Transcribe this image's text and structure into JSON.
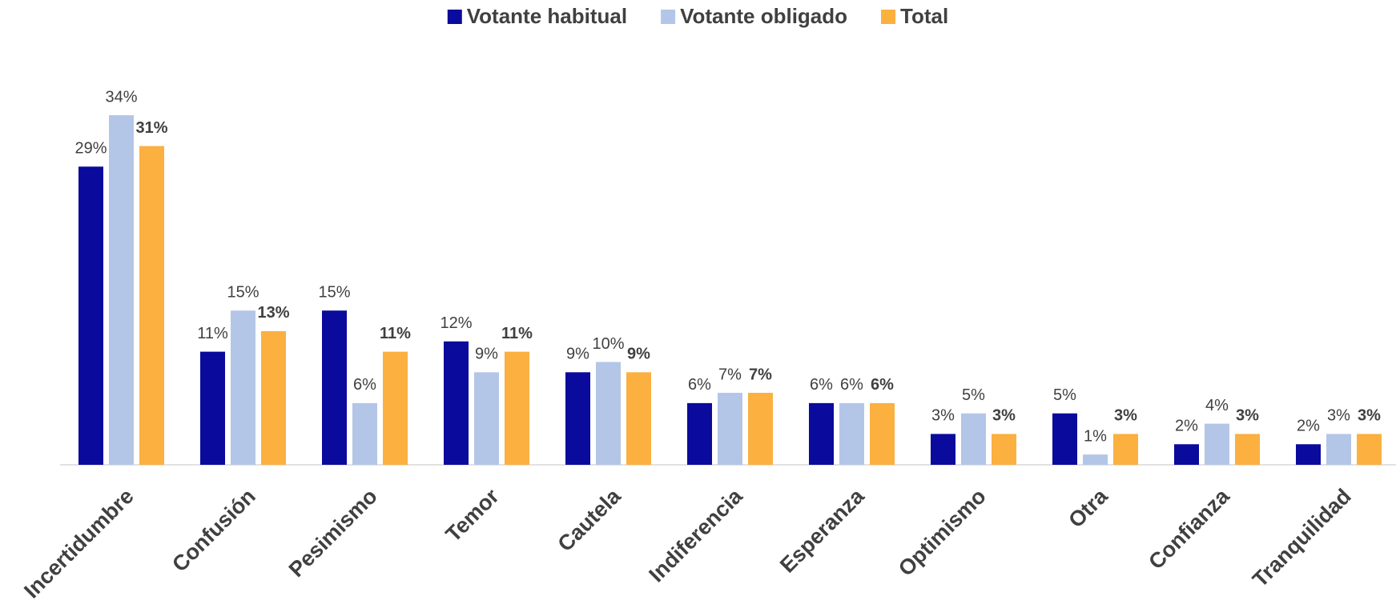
{
  "chart_data": {
    "type": "bar",
    "categories": [
      "Incertidumbre",
      "Confusión",
      "Pesimismo",
      "Temor",
      "Cautela",
      "Indiferencia",
      "Esperanza",
      "Optimismo",
      "Otra",
      "Confianza",
      "Tranquilidad"
    ],
    "series": [
      {
        "name": "Votante habitual",
        "color": "#0a0a9c",
        "values": [
          29,
          11,
          15,
          12,
          9,
          6,
          6,
          3,
          5,
          2,
          2
        ],
        "value_labels": [
          "29%",
          "11%",
          "15%",
          "12%",
          "9%",
          "6%",
          "6%",
          "3%",
          "5%",
          "2%",
          "2%"
        ]
      },
      {
        "name": "Votante obligado",
        "color": "#b4c6e7",
        "values": [
          34,
          15,
          6,
          9,
          10,
          7,
          6,
          5,
          1,
          4,
          3
        ],
        "value_labels": [
          "34%",
          "15%",
          "6%",
          "9%",
          "10%",
          "7%",
          "6%",
          "5%",
          "1%",
          "4%",
          "3%"
        ]
      },
      {
        "name": "Total",
        "color": "#fbb040",
        "values": [
          31,
          13,
          11,
          11,
          9,
          7,
          6,
          3,
          3,
          3,
          3
        ],
        "value_labels": [
          "31%",
          "13%",
          "11%",
          "11%",
          "9%",
          "7%",
          "6%",
          "3%",
          "3%",
          "3%",
          "3%"
        ]
      }
    ],
    "legend": "top"
  }
}
